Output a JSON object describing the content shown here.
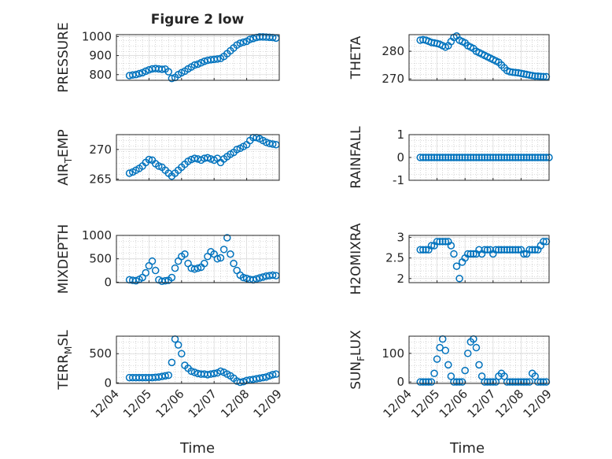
{
  "figure": {
    "title": "Figure 2 low",
    "xlabel": "Time"
  },
  "colors": {
    "marker": "#0072BD",
    "axis": "#262626",
    "grid": "#b8b8b8"
  },
  "x_ticks": [
    "12/04",
    "12/05",
    "12/06",
    "12/07",
    "12/08",
    "12/09"
  ],
  "chart_data": [
    {
      "type": "scatter",
      "ylabel": "PRESSURE",
      "xlim": [
        0,
        5
      ],
      "ylim": [
        770,
        1010
      ],
      "yticks": [
        800,
        900,
        1000
      ],
      "grid": true,
      "has_title": true,
      "series": [
        {
          "x": [
            0.4,
            0.5,
            0.6,
            0.7,
            0.8,
            0.9,
            1.0,
            1.1,
            1.2,
            1.3,
            1.4,
            1.5,
            1.6,
            1.7,
            1.8,
            1.9,
            2.0,
            2.1,
            2.2,
            2.3,
            2.4,
            2.5,
            2.6,
            2.7,
            2.8,
            2.9,
            3.0,
            3.1,
            3.2,
            3.3,
            3.4,
            3.5,
            3.6,
            3.7,
            3.8,
            3.9,
            4.0,
            4.1,
            4.2,
            4.3,
            4.4,
            4.5,
            4.6,
            4.7,
            4.8,
            4.9
          ],
          "y": [
            795,
            798,
            800,
            805,
            810,
            818,
            825,
            830,
            832,
            830,
            828,
            829,
            815,
            780,
            785,
            800,
            810,
            818,
            830,
            840,
            850,
            855,
            862,
            870,
            875,
            878,
            880,
            882,
            885,
            895,
            910,
            925,
            940,
            955,
            965,
            970,
            975,
            985,
            990,
            995,
            998,
            998,
            997,
            996,
            995,
            992
          ]
        }
      ]
    },
    {
      "type": "scatter",
      "ylabel": "THETA",
      "xlim": [
        0,
        5
      ],
      "ylim": [
        269.5,
        286
      ],
      "yticks": [
        270,
        280
      ],
      "grid": true,
      "series": [
        {
          "x": [
            0.4,
            0.5,
            0.6,
            0.7,
            0.8,
            0.9,
            1.0,
            1.1,
            1.2,
            1.3,
            1.4,
            1.5,
            1.6,
            1.7,
            1.8,
            1.9,
            2.0,
            2.1,
            2.2,
            2.3,
            2.4,
            2.5,
            2.6,
            2.7,
            2.8,
            2.9,
            3.0,
            3.1,
            3.2,
            3.3,
            3.4,
            3.5,
            3.6,
            3.7,
            3.8,
            3.9,
            4.0,
            4.1,
            4.2,
            4.3,
            4.4,
            4.5,
            4.6,
            4.7,
            4.8,
            4.9
          ],
          "y": [
            284,
            284.2,
            284,
            283.6,
            283.2,
            283,
            282.8,
            282.5,
            282,
            281.5,
            282,
            283.5,
            285,
            285.5,
            284,
            283.5,
            283,
            282,
            281.5,
            281,
            280,
            279.5,
            279,
            278.5,
            278,
            277.5,
            277,
            276.5,
            276,
            275,
            274,
            273,
            272.6,
            272.4,
            272.3,
            272.2,
            272,
            271.8,
            271.6,
            271.4,
            271.2,
            271,
            271,
            270.9,
            270.8,
            270.8
          ]
        }
      ]
    },
    {
      "type": "scatter",
      "ylabel": "AIR_TEMP",
      "xlim": [
        0,
        5
      ],
      "ylim": [
        264.8,
        272.5
      ],
      "yticks": [
        265,
        270
      ],
      "grid": true,
      "series": [
        {
          "x": [
            0.4,
            0.5,
            0.6,
            0.7,
            0.8,
            0.9,
            1.0,
            1.1,
            1.2,
            1.3,
            1.4,
            1.5,
            1.6,
            1.7,
            1.8,
            1.9,
            2.0,
            2.1,
            2.2,
            2.3,
            2.4,
            2.5,
            2.6,
            2.7,
            2.8,
            2.9,
            3.0,
            3.1,
            3.2,
            3.3,
            3.4,
            3.5,
            3.6,
            3.7,
            3.8,
            3.9,
            4.0,
            4.1,
            4.2,
            4.3,
            4.4,
            4.5,
            4.6,
            4.7,
            4.8,
            4.9
          ],
          "y": [
            266,
            266.2,
            266.5,
            266.8,
            267.2,
            267.8,
            268.3,
            268.2,
            267.6,
            267.2,
            267,
            266.5,
            266,
            265.5,
            266,
            266.5,
            267,
            267.5,
            268,
            268.3,
            268.5,
            268.4,
            268.2,
            268.5,
            268.6,
            268.4,
            268.2,
            268.5,
            267.8,
            268.4,
            268.8,
            269.2,
            269.5,
            270,
            270.2,
            270.5,
            270.8,
            271.5,
            272,
            272,
            271.8,
            271.5,
            271.2,
            271,
            270.9,
            270.8
          ]
        }
      ]
    },
    {
      "type": "scatter",
      "ylabel": "RAINFALL",
      "xlim": [
        0,
        5
      ],
      "ylim": [
        -1,
        1
      ],
      "yticks": [
        -1,
        0,
        1
      ],
      "grid": true,
      "series": [
        {
          "x": [
            0.4,
            0.5,
            0.6,
            0.7,
            0.8,
            0.9,
            1.0,
            1.1,
            1.2,
            1.3,
            1.4,
            1.5,
            1.6,
            1.7,
            1.8,
            1.9,
            2.0,
            2.1,
            2.2,
            2.3,
            2.4,
            2.5,
            2.6,
            2.7,
            2.8,
            2.9,
            3.0,
            3.1,
            3.2,
            3.3,
            3.4,
            3.5,
            3.6,
            3.7,
            3.8,
            3.9,
            4.0,
            4.1,
            4.2,
            4.3,
            4.4,
            4.5,
            4.6,
            4.7,
            4.8,
            4.9,
            5.0
          ],
          "y": [
            0,
            0,
            0,
            0,
            0,
            0,
            0,
            0,
            0,
            0,
            0,
            0,
            0,
            0,
            0,
            0,
            0,
            0,
            0,
            0,
            0,
            0,
            0,
            0,
            0,
            0,
            0,
            0,
            0,
            0,
            0,
            0,
            0,
            0,
            0,
            0,
            0,
            0,
            0,
            0,
            0,
            0,
            0,
            0,
            0,
            0,
            0
          ]
        }
      ]
    },
    {
      "type": "scatter",
      "ylabel": "MIXDEPTH",
      "xlim": [
        0,
        5
      ],
      "ylim": [
        -10,
        1000
      ],
      "yticks": [
        0,
        500,
        1000
      ],
      "grid": true,
      "series": [
        {
          "x": [
            0.4,
            0.5,
            0.6,
            0.7,
            0.8,
            0.9,
            1.0,
            1.1,
            1.2,
            1.3,
            1.4,
            1.5,
            1.6,
            1.7,
            1.8,
            1.9,
            2.0,
            2.1,
            2.2,
            2.3,
            2.4,
            2.5,
            2.6,
            2.7,
            2.8,
            2.9,
            3.0,
            3.1,
            3.2,
            3.3,
            3.4,
            3.5,
            3.6,
            3.7,
            3.8,
            3.9,
            4.0,
            4.1,
            4.2,
            4.3,
            4.4,
            4.5,
            4.6,
            4.7,
            4.8,
            4.9
          ],
          "y": [
            50,
            40,
            30,
            60,
            100,
            200,
            350,
            450,
            250,
            50,
            20,
            30,
            40,
            100,
            300,
            450,
            550,
            600,
            400,
            300,
            280,
            300,
            320,
            400,
            550,
            650,
            600,
            500,
            520,
            700,
            950,
            600,
            400,
            250,
            150,
            100,
            80,
            60,
            50,
            70,
            90,
            110,
            130,
            140,
            150,
            140
          ]
        }
      ]
    },
    {
      "type": "scatter",
      "ylabel": "H2OMIXRA",
      "xlim": [
        0,
        5
      ],
      "ylim": [
        1.9,
        3.05
      ],
      "yticks": [
        2,
        2.5,
        3
      ],
      "grid": true,
      "series": [
        {
          "x": [
            0.4,
            0.5,
            0.6,
            0.7,
            0.8,
            0.9,
            1.0,
            1.1,
            1.2,
            1.3,
            1.4,
            1.5,
            1.6,
            1.7,
            1.8,
            1.9,
            2.0,
            2.1,
            2.2,
            2.3,
            2.4,
            2.5,
            2.6,
            2.7,
            2.8,
            2.9,
            3.0,
            3.1,
            3.2,
            3.3,
            3.4,
            3.5,
            3.6,
            3.7,
            3.8,
            3.9,
            4.0,
            4.1,
            4.2,
            4.3,
            4.4,
            4.5,
            4.6,
            4.7,
            4.8,
            4.9
          ],
          "y": [
            2.7,
            2.7,
            2.7,
            2.7,
            2.8,
            2.8,
            2.9,
            2.9,
            2.9,
            2.9,
            2.9,
            2.8,
            2.6,
            2.3,
            2.0,
            2.4,
            2.5,
            2.6,
            2.6,
            2.6,
            2.6,
            2.7,
            2.6,
            2.7,
            2.7,
            2.7,
            2.6,
            2.7,
            2.7,
            2.7,
            2.7,
            2.7,
            2.7,
            2.7,
            2.7,
            2.7,
            2.7,
            2.6,
            2.6,
            2.7,
            2.7,
            2.7,
            2.7,
            2.8,
            2.9,
            2.9
          ]
        }
      ]
    },
    {
      "type": "scatter",
      "ylabel": "TERR_MSL",
      "xlim": [
        0,
        5
      ],
      "ylim": [
        -10,
        800
      ],
      "yticks": [
        0,
        500
      ],
      "grid": true,
      "series": [
        {
          "x": [
            0.4,
            0.5,
            0.6,
            0.7,
            0.8,
            0.9,
            1.0,
            1.1,
            1.2,
            1.3,
            1.4,
            1.5,
            1.6,
            1.7,
            1.8,
            1.9,
            2.0,
            2.1,
            2.2,
            2.3,
            2.4,
            2.5,
            2.6,
            2.7,
            2.8,
            2.9,
            3.0,
            3.1,
            3.2,
            3.3,
            3.4,
            3.5,
            3.6,
            3.7,
            3.8,
            3.9,
            4.0,
            4.1,
            4.2,
            4.3,
            4.4,
            4.5,
            4.6,
            4.7,
            4.8,
            4.9
          ],
          "y": [
            90,
            90,
            90,
            90,
            90,
            90,
            90,
            90,
            95,
            100,
            110,
            120,
            130,
            350,
            750,
            650,
            500,
            300,
            250,
            200,
            180,
            160,
            150,
            150,
            140,
            150,
            160,
            170,
            200,
            180,
            150,
            120,
            80,
            30,
            10,
            20,
            40,
            50,
            60,
            70,
            80,
            90,
            100,
            120,
            140,
            150
          ]
        }
      ]
    },
    {
      "type": "scatter",
      "ylabel": "SUN_FLUX",
      "xlim": [
        0,
        5
      ],
      "ylim": [
        -5,
        160
      ],
      "yticks": [
        0,
        100
      ],
      "grid": true,
      "series": [
        {
          "x": [
            0.4,
            0.5,
            0.6,
            0.7,
            0.8,
            0.9,
            1.0,
            1.1,
            1.2,
            1.3,
            1.4,
            1.5,
            1.6,
            1.7,
            1.8,
            1.9,
            2.0,
            2.1,
            2.2,
            2.3,
            2.4,
            2.5,
            2.6,
            2.7,
            2.8,
            2.9,
            3.0,
            3.1,
            3.2,
            3.3,
            3.4,
            3.5,
            3.6,
            3.7,
            3.8,
            3.9,
            4.0,
            4.1,
            4.2,
            4.3,
            4.4,
            4.5,
            4.6,
            4.7,
            4.8,
            4.9
          ],
          "y": [
            0,
            0,
            0,
            0,
            0,
            30,
            80,
            120,
            150,
            110,
            60,
            20,
            0,
            0,
            0,
            0,
            40,
            100,
            140,
            150,
            120,
            60,
            20,
            0,
            0,
            0,
            0,
            0,
            20,
            30,
            20,
            0,
            0,
            0,
            0,
            0,
            0,
            0,
            0,
            0,
            30,
            20,
            0,
            0,
            0,
            0
          ]
        }
      ]
    }
  ]
}
